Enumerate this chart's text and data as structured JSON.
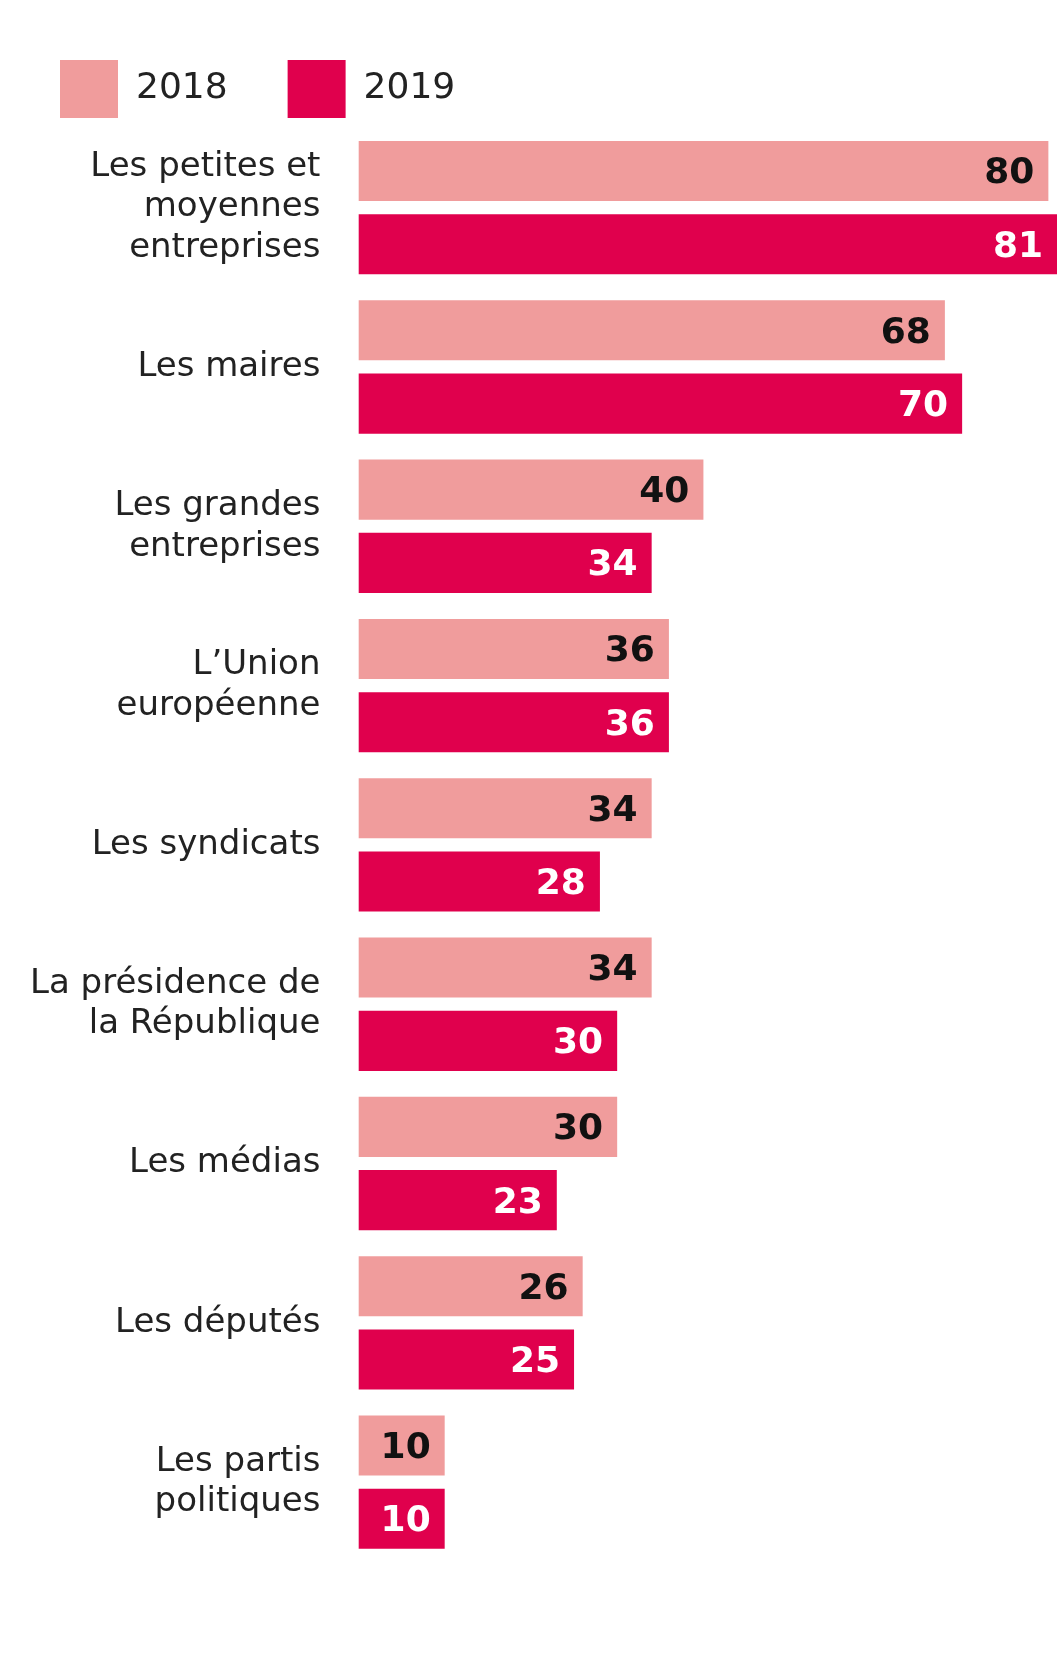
{
  "chart_data": {
    "type": "bar",
    "orientation": "horizontal",
    "data_labels": true,
    "legend": "top left",
    "categories": [
      "Les petites et moyennes entreprises",
      "Les maires",
      "Les grandes entreprises",
      "L’Union européenne",
      "Les syndicats",
      "La présidence de la République",
      "Les médias",
      "Les députés",
      "Les partis politiques"
    ],
    "series": [
      {
        "name": "2018",
        "color": "#f09c9c",
        "values": [
          80,
          68,
          40,
          36,
          34,
          34,
          30,
          26,
          10
        ]
      },
      {
        "name": "2019",
        "color": "#e0004d",
        "values": [
          81,
          70,
          34,
          36,
          28,
          30,
          23,
          25,
          10
        ]
      }
    ]
  }
}
